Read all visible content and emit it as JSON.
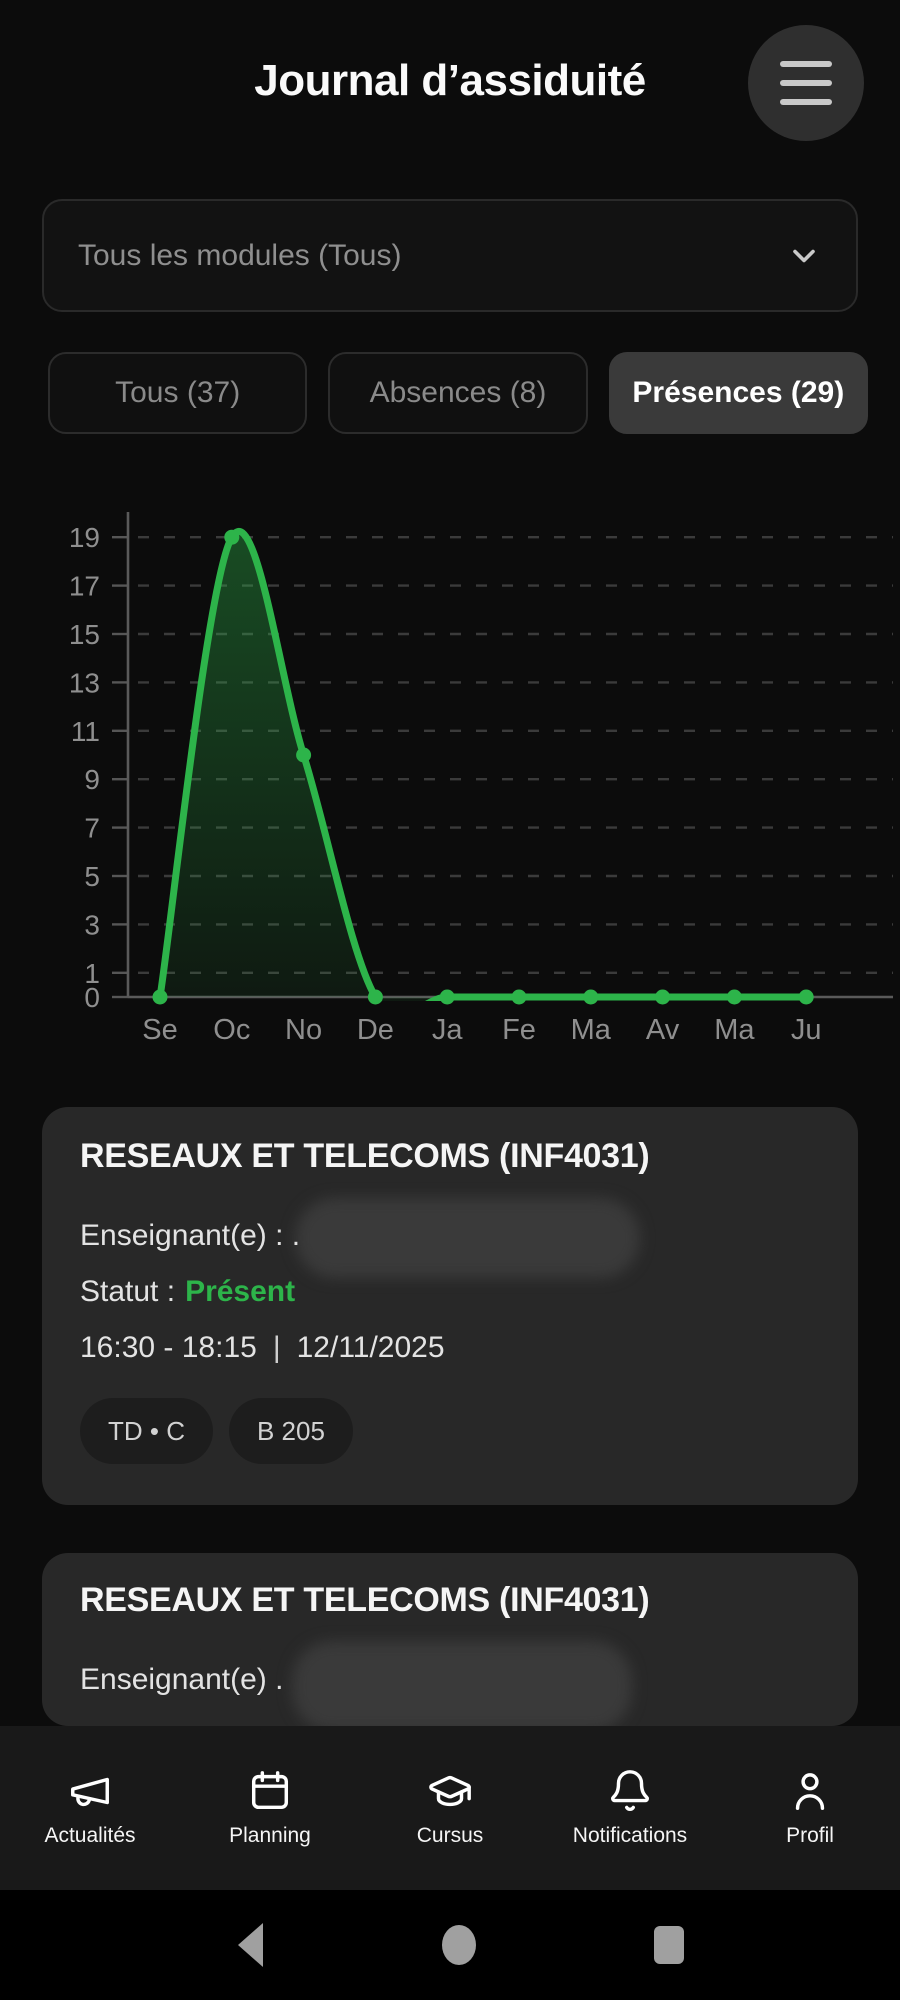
{
  "header": {
    "title": "Journal d’assiduité",
    "menu_icon": "hamburger-icon"
  },
  "filters": {
    "module_dropdown": {
      "value": "Tous les modules (Tous)",
      "chevron_icon": "chevron-down-icon"
    },
    "tabs": [
      {
        "label": "Tous (37)",
        "active": false
      },
      {
        "label": "Absences (8)",
        "active": false
      },
      {
        "label": "Présences (29)",
        "active": true
      }
    ]
  },
  "chart_data": {
    "type": "area",
    "x": [
      "Se",
      "Oc",
      "No",
      "De",
      "Ja",
      "Fe",
      "Ma",
      "Av",
      "Ma",
      "Ju"
    ],
    "values": [
      0,
      19,
      10,
      0,
      0,
      0,
      0,
      0,
      0,
      0
    ],
    "yticks": [
      0,
      1,
      3,
      5,
      7,
      9,
      11,
      13,
      15,
      17,
      19
    ],
    "ylim": [
      0,
      19
    ],
    "title": "",
    "xlabel": "",
    "ylabel": "",
    "grid": "dashed-horizontal",
    "legend": "none",
    "line_color": "#2db44a",
    "axis_color": "#5a5a5a",
    "grid_color": "#3b3b3b",
    "tick_label_color": "#8f8f8f"
  },
  "cards": [
    {
      "title": "RESEAUX ET TELECOMS (INF4031)",
      "teacher_label": "Enseignant(e) : .",
      "status_label": "Statut :",
      "status_value": "Présent",
      "time": "16:30 - 18:15",
      "separator": "|",
      "date": "12/11/2025",
      "tags": [
        "TD • C",
        "B 205"
      ]
    },
    {
      "title": "RESEAUX ET TELECOMS (INF4031)",
      "teacher_label": "Enseignant(e) ."
    }
  ],
  "bottom_nav": [
    {
      "label": "Actualités",
      "icon": "megaphone-icon"
    },
    {
      "label": "Planning",
      "icon": "calendar-icon"
    },
    {
      "label": "Cursus",
      "icon": "graduation-cap-icon"
    },
    {
      "label": "Notifications",
      "icon": "bell-icon"
    },
    {
      "label": "Profil",
      "icon": "person-icon"
    }
  ],
  "system_nav": {
    "back_icon": "back-triangle-icon",
    "home_icon": "home-circle-icon",
    "recents_icon": "recents-square-icon"
  },
  "colors": {
    "accent_green": "#2db44a",
    "page_bg": "#0c0c0c",
    "card_bg": "#282828",
    "active_chip_bg": "#3a3a3a",
    "nav_bg": "#191919",
    "system_nav_bg": "#000000",
    "system_icon_gray": "#a0a0a0"
  }
}
